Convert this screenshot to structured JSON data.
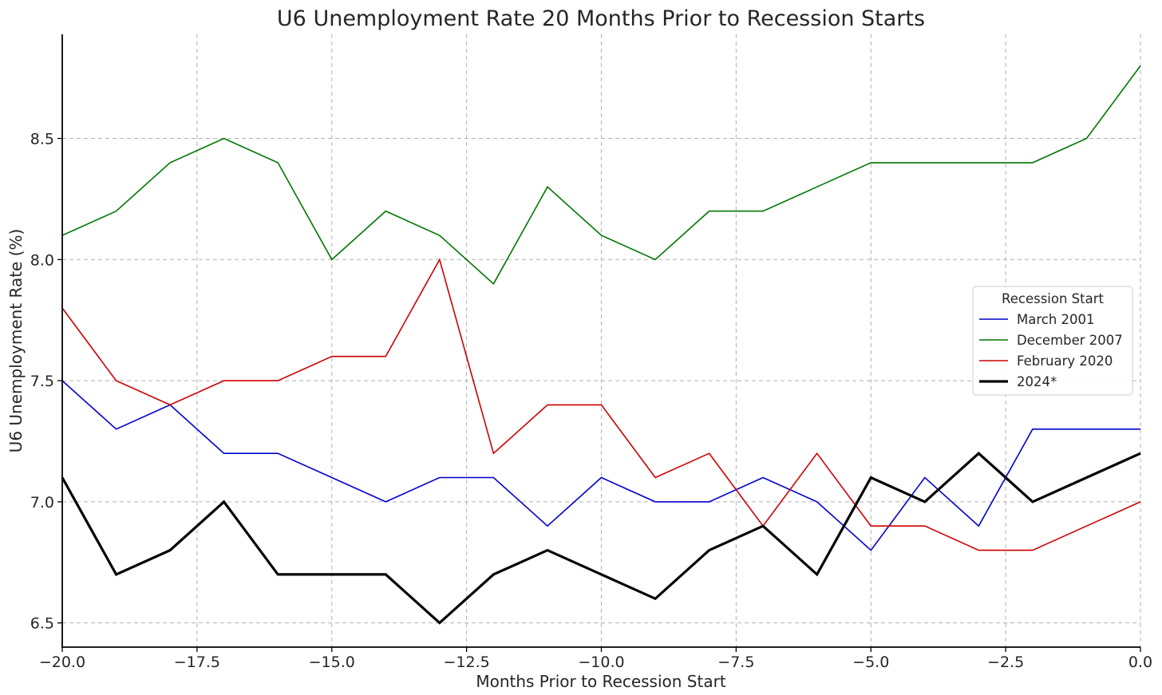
{
  "chart_data": {
    "type": "line",
    "title": "U6 Unemployment Rate 20 Months Prior to Recession Starts",
    "xlabel": "Months Prior to Recession Start",
    "ylabel": "U6 Unemployment Rate (%)",
    "xlim": [
      -20,
      0
    ],
    "ylim": [
      6.4,
      8.93
    ],
    "xticks": [
      -20,
      -17.5,
      -15,
      -12.5,
      -10,
      -7.5,
      -5,
      -2.5,
      0
    ],
    "xtick_labels": [
      "−20.0",
      "−17.5",
      "−15.0",
      "−12.5",
      "−10.0",
      "−7.5",
      "−5.0",
      "−2.5",
      "0.0"
    ],
    "yticks": [
      6.5,
      7.0,
      7.5,
      8.0,
      8.5
    ],
    "ytick_labels": [
      "6.5",
      "7.0",
      "7.5",
      "8.0",
      "8.5"
    ],
    "grid": true,
    "legend": {
      "title": "Recession Start",
      "placement": "right"
    },
    "x": [
      -20,
      -19,
      -18,
      -17,
      -16,
      -15,
      -14,
      -13,
      -12,
      -11,
      -10,
      -9,
      -8,
      -7,
      -6,
      -5,
      -4,
      -3,
      -2,
      -1,
      0
    ],
    "series": [
      {
        "name": "March 2001",
        "color": "#0000cc",
        "width": "thin",
        "values": [
          7.5,
          7.3,
          7.4,
          7.2,
          7.2,
          7.1,
          7.0,
          7.1,
          7.1,
          6.9,
          7.1,
          7.0,
          7.0,
          7.1,
          7.0,
          6.8,
          7.1,
          6.9,
          7.3,
          7.3,
          7.3
        ]
      },
      {
        "name": "December 2007",
        "color": "#007700",
        "width": "thin",
        "values": [
          8.1,
          8.2,
          8.4,
          8.5,
          8.4,
          8.0,
          8.2,
          8.1,
          7.9,
          8.3,
          8.1,
          8.0,
          8.2,
          8.2,
          8.3,
          8.4,
          8.4,
          8.4,
          8.4,
          8.5,
          8.8
        ]
      },
      {
        "name": "February 2020",
        "color": "#cc0000",
        "width": "thin",
        "values": [
          7.8,
          7.5,
          7.4,
          7.5,
          7.5,
          7.6,
          7.6,
          8.0,
          7.2,
          7.4,
          7.4,
          7.1,
          7.2,
          6.9,
          7.2,
          6.9,
          6.9,
          6.8,
          6.8,
          6.9,
          7.0
        ]
      },
      {
        "name": "2024*",
        "color": "#000000",
        "width": "thick",
        "values": [
          7.1,
          6.7,
          6.8,
          7.0,
          6.7,
          6.7,
          6.7,
          6.5,
          6.7,
          6.8,
          6.7,
          6.6,
          6.8,
          6.9,
          6.7,
          7.1,
          7.0,
          7.2,
          7.0,
          7.1,
          7.2
        ]
      }
    ]
  }
}
